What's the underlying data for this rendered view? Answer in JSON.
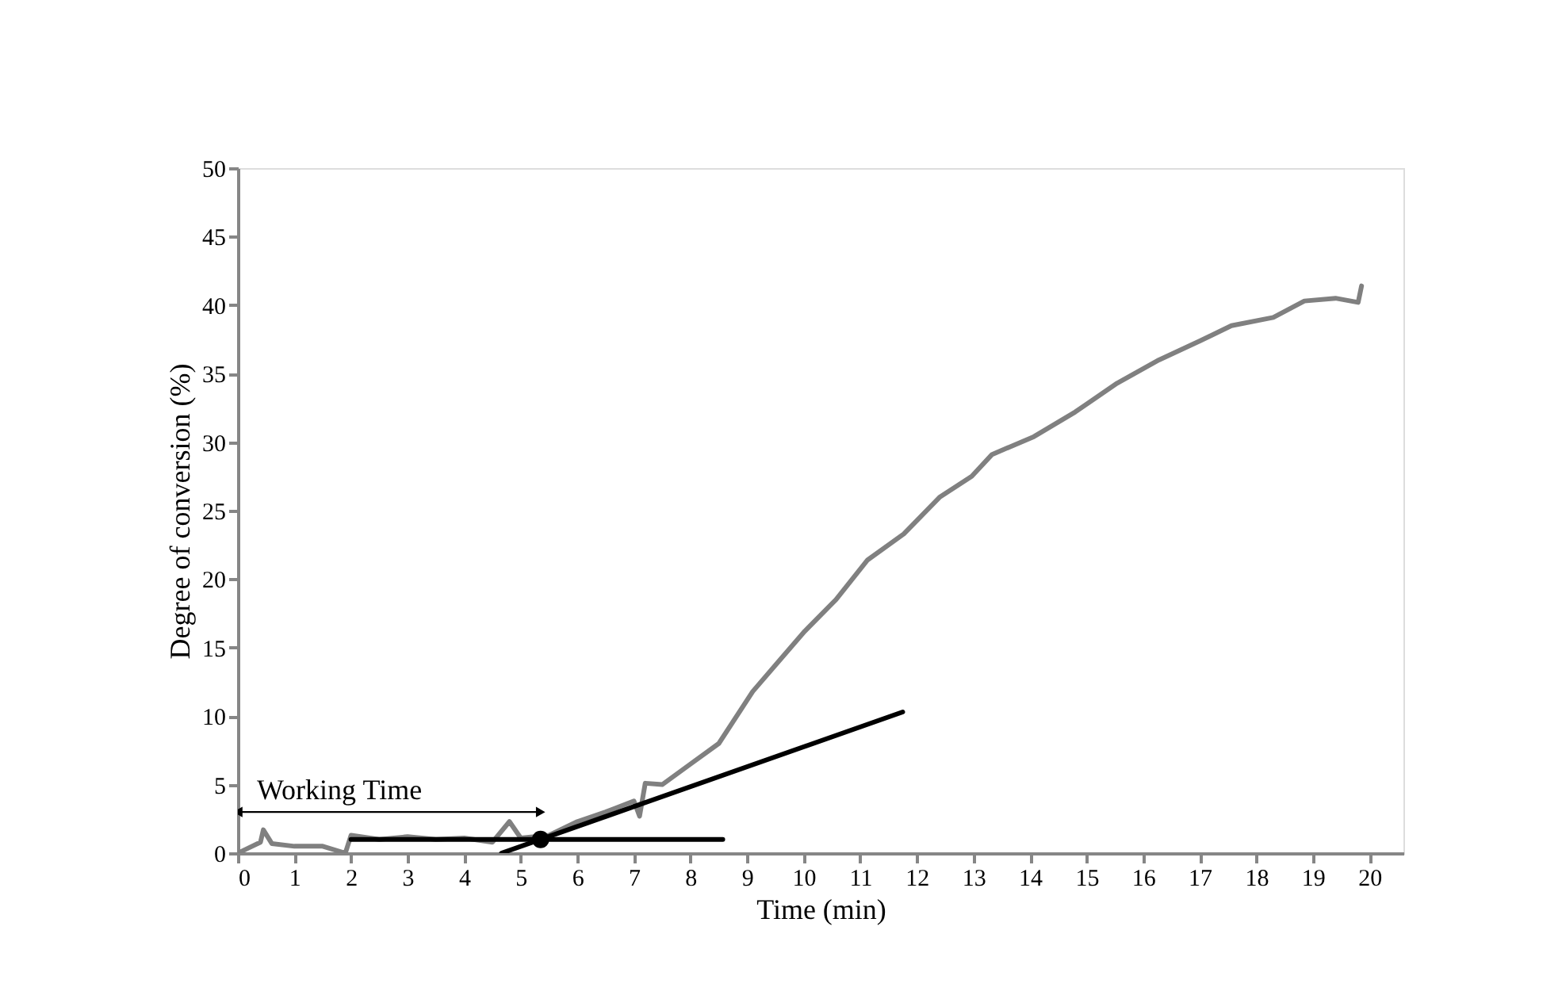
{
  "chart_data": {
    "type": "line",
    "xlabel": "Time (min)",
    "ylabel": "Degree of conversion (%)",
    "xlim": [
      0,
      20.6
    ],
    "xticks": [
      0,
      1,
      2,
      3,
      4,
      5,
      6,
      7,
      8,
      9,
      10,
      11,
      12,
      13,
      14,
      15,
      16,
      17,
      18,
      19,
      20
    ],
    "ylim": [
      0,
      50
    ],
    "yticks": [
      0,
      5,
      10,
      15,
      20,
      25,
      30,
      35,
      40,
      45,
      50
    ],
    "grid": false,
    "annotations": [
      "Working Time"
    ],
    "series": [
      {
        "color": "#808080",
        "marker": "none",
        "line_style": "solid",
        "x": [
          0,
          0.2,
          0.4,
          0.45,
          0.6,
          1,
          1.5,
          1.9,
          2.0,
          2.5,
          3,
          3.5,
          4,
          4.5,
          4.8,
          5.0,
          5.5,
          6,
          6.5,
          7,
          7.1,
          7.2,
          7.5,
          8,
          8.5,
          9.1,
          9.56,
          10.02,
          10.57,
          11.13,
          11.77,
          12.41,
          12.97,
          13.33,
          14.07,
          14.8,
          15.54,
          16.28,
          17.01,
          17.56,
          18.3,
          18.85,
          19.4,
          19.8,
          19.86
        ],
        "values": [
          0,
          0.4,
          0.8,
          1.7,
          0.7,
          0.5,
          0.5,
          0,
          1.3,
          1,
          1.2,
          1,
          1.1,
          0.8,
          2.3,
          1.1,
          1.3,
          2.3,
          3.0,
          3.8,
          2.7,
          5.1,
          5.0,
          6.5,
          8.0,
          11.8,
          14.0,
          16.2,
          18.5,
          21.4,
          23.3,
          26.0,
          27.5,
          29.1,
          30.4,
          32.2,
          34.3,
          36.0,
          37.4,
          38.5,
          39.1,
          40.3,
          40.5,
          40.2,
          41.4
        ]
      },
      {
        "type": "line",
        "color": "#000000",
        "marker": "none",
        "line_style": "solid",
        "x": [
          2.0,
          8.57
        ],
        "values": [
          1,
          1
        ]
      },
      {
        "type": "line",
        "color": "#000000",
        "marker": "none",
        "line_style": "solid",
        "x": [
          4.66,
          11.75
        ],
        "values": [
          0,
          10.3
        ]
      },
      {
        "type": "line",
        "color": "#000000",
        "marker": "triangle",
        "line_style": "solid",
        "x": [
          0,
          5.35
        ],
        "values": [
          3,
          3
        ]
      },
      {
        "type": "scatter",
        "color": "#000000",
        "marker": "circle",
        "x": [
          5.35
        ],
        "values": [
          1
        ]
      }
    ]
  }
}
